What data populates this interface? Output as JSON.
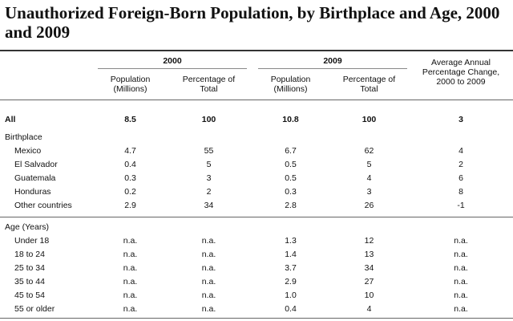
{
  "title": "Unauthorized Foreign-Born Population, by Birthplace and Age, 2000 and 2009",
  "groups": {
    "y2000": "2000",
    "y2009": "2009",
    "change": "Average Annual Percentage Change, 2000 to 2009"
  },
  "columns": {
    "pop2000": "Population (Millions)",
    "pct2000": "Percentage of Total",
    "pop2009": "Population (Millions)",
    "pct2009": "Percentage of Total"
  },
  "all_row": {
    "label": "All",
    "values": [
      "8.5",
      "100",
      "10.8",
      "100",
      "3"
    ]
  },
  "sections": [
    {
      "heading": "Birthplace",
      "rows": [
        {
          "label": "Mexico",
          "values": [
            "4.7",
            "55",
            "6.7",
            "62",
            "4"
          ]
        },
        {
          "label": "El Salvador",
          "values": [
            "0.4",
            "5",
            "0.5",
            "5",
            "2"
          ]
        },
        {
          "label": "Guatemala",
          "values": [
            "0.3",
            "3",
            "0.5",
            "4",
            "6"
          ]
        },
        {
          "label": "Honduras",
          "values": [
            "0.2",
            "2",
            "0.3",
            "3",
            "8"
          ]
        },
        {
          "label": "Other countries",
          "values": [
            "2.9",
            "34",
            "2.8",
            "26",
            "-1"
          ]
        }
      ]
    },
    {
      "heading": "Age (Years)",
      "rows": [
        {
          "label": "Under 18",
          "values": [
            "n.a.",
            "n.a.",
            "1.3",
            "12",
            "n.a."
          ]
        },
        {
          "label": "18 to 24",
          "values": [
            "n.a.",
            "n.a.",
            "1.4",
            "13",
            "n.a."
          ]
        },
        {
          "label": "25 to 34",
          "values": [
            "n.a.",
            "n.a.",
            "3.7",
            "34",
            "n.a."
          ]
        },
        {
          "label": "35 to 44",
          "values": [
            "n.a.",
            "n.a.",
            "2.9",
            "27",
            "n.a."
          ]
        },
        {
          "label": "45 to 54",
          "values": [
            "n.a.",
            "n.a.",
            "1.0",
            "10",
            "n.a."
          ]
        },
        {
          "label": "55 or older",
          "values": [
            "n.a.",
            "n.a.",
            "0.4",
            "4",
            "n.a."
          ]
        }
      ]
    }
  ]
}
